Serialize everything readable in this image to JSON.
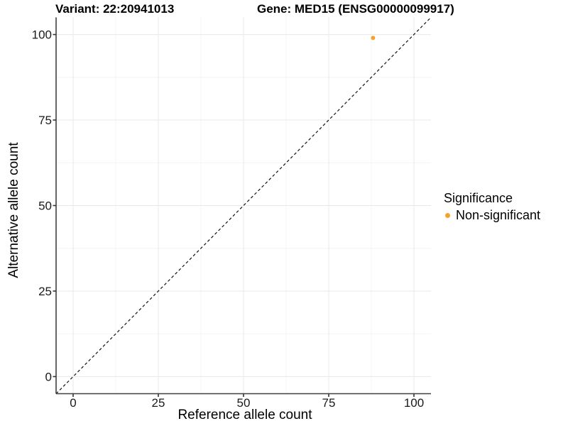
{
  "chart_data": {
    "type": "scatter",
    "title_variant": "Variant: 22:20941013",
    "title_gene": "Gene: MED15 (ENSG00000099917)",
    "xlabel": "Reference allele count",
    "ylabel": "Alternative allele count",
    "xlim": [
      -5,
      105
    ],
    "ylim": [
      -5,
      105
    ],
    "x_ticks": [
      0,
      25,
      50,
      75,
      100
    ],
    "y_ticks": [
      0,
      25,
      50,
      75,
      100
    ],
    "grid": "major+minor",
    "legend_position": "right",
    "identity_line": {
      "slope": 1,
      "intercept": 0,
      "style": "dashed"
    },
    "points": [
      {
        "x": 88,
        "y": 99,
        "series": "Non-significant",
        "color": "#F8A12C"
      }
    ],
    "legend": {
      "title": "Significance",
      "items": [
        {
          "label": "Non-significant",
          "color": "#F8A12C"
        }
      ]
    }
  },
  "colors": {
    "background": "#FFFFFF",
    "grid_major": "#E8E8E8",
    "grid_minor": "#F4F4F4",
    "axis_line": "#404040",
    "tick_mark": "#333333",
    "tick_label": "#1A1A1A",
    "identity_line": "#111111",
    "point": "#F8A12C"
  }
}
